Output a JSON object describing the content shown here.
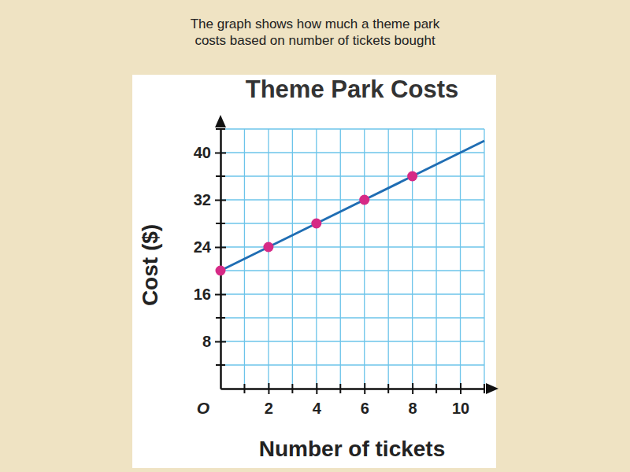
{
  "chart_data": {
    "type": "line",
    "caption": [
      "The graph shows how much a theme park",
      "costs based on number of tickets bought"
    ],
    "title": "Theme Park Costs",
    "x_label": "Number of tickets",
    "y_label": "Cost ($)",
    "origin_label": "O",
    "x": [
      0,
      2,
      4,
      6,
      8,
      11
    ],
    "series": [
      {
        "type": "line",
        "color": "#1f6db3",
        "values": [
          20,
          24,
          28,
          32,
          36,
          42
        ]
      },
      {
        "type": "scatter",
        "color": "#d62a86",
        "marker": "circle",
        "values": [
          20,
          24,
          28,
          32,
          36,
          null
        ]
      }
    ],
    "xlim": [
      0,
      11
    ],
    "ylim": [
      0,
      44
    ],
    "xticks": [
      2,
      4,
      6,
      8,
      10
    ],
    "yticks": [
      8,
      16,
      24,
      32,
      40
    ],
    "xticks_minor": [
      1,
      3,
      5,
      7,
      9,
      11
    ],
    "yticks_minor": [
      4,
      12,
      20,
      28,
      36,
      44
    ],
    "grid": true
  }
}
